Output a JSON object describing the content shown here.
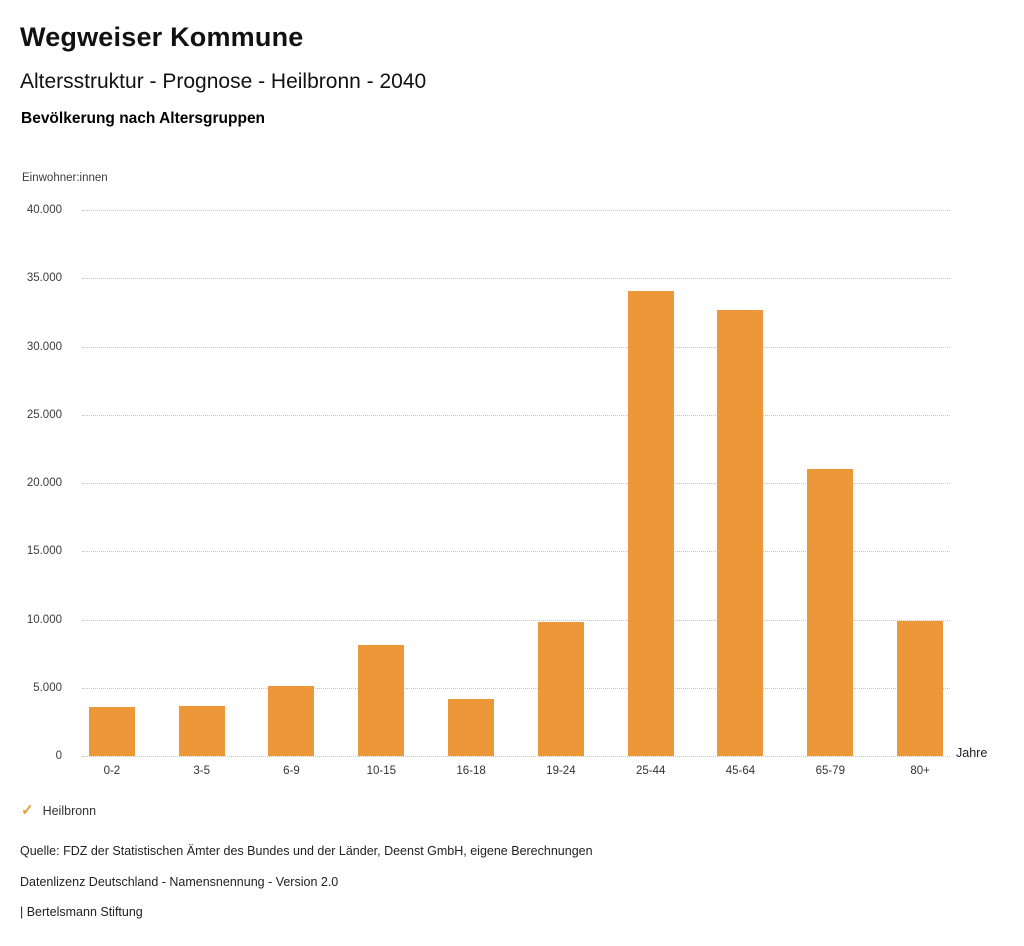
{
  "page": {
    "title": "Wegweiser Kommune",
    "subtitle": "Altersstruktur - Prognose - Heilbronn - 2040",
    "heading": "Bevölkerung nach Altersgruppen"
  },
  "chart_data": {
    "type": "bar",
    "title": "Bevölkerung nach Altersgruppen",
    "ylabel": "Einwohner:innen",
    "xlabel": "Jahre",
    "categories": [
      "0-2",
      "3-5",
      "6-9",
      "10-15",
      "16-18",
      "19-24",
      "25-44",
      "45-64",
      "65-79",
      "80+"
    ],
    "values": [
      3600,
      3650,
      5100,
      8100,
      4200,
      9800,
      34050,
      32700,
      21000,
      9900
    ],
    "ylim": [
      0,
      40000
    ],
    "ytick_interval": 5000,
    "ytick_labels": [
      "0",
      "5.000",
      "10.000",
      "15.000",
      "20.000",
      "25.000",
      "30.000",
      "35.000",
      "40.000"
    ],
    "grid": "horizontal-dotted",
    "legend_position": "bottom-left",
    "bar_color": "#ED9838",
    "gridline_color": "#c3c3c3",
    "legend": {
      "marker": "✓",
      "marker_name": "check-icon",
      "marker_color": "#E9993E",
      "label": "Heilbronn"
    }
  },
  "footer": {
    "source": "Quelle: FDZ der Statistischen Ämter des Bundes und der Länder, Deenst GmbH, eigene Berechnungen",
    "license": "Datenlizenz Deutschland - Namensnennung - Version 2.0",
    "attribution": "| Bertelsmann Stiftung"
  }
}
